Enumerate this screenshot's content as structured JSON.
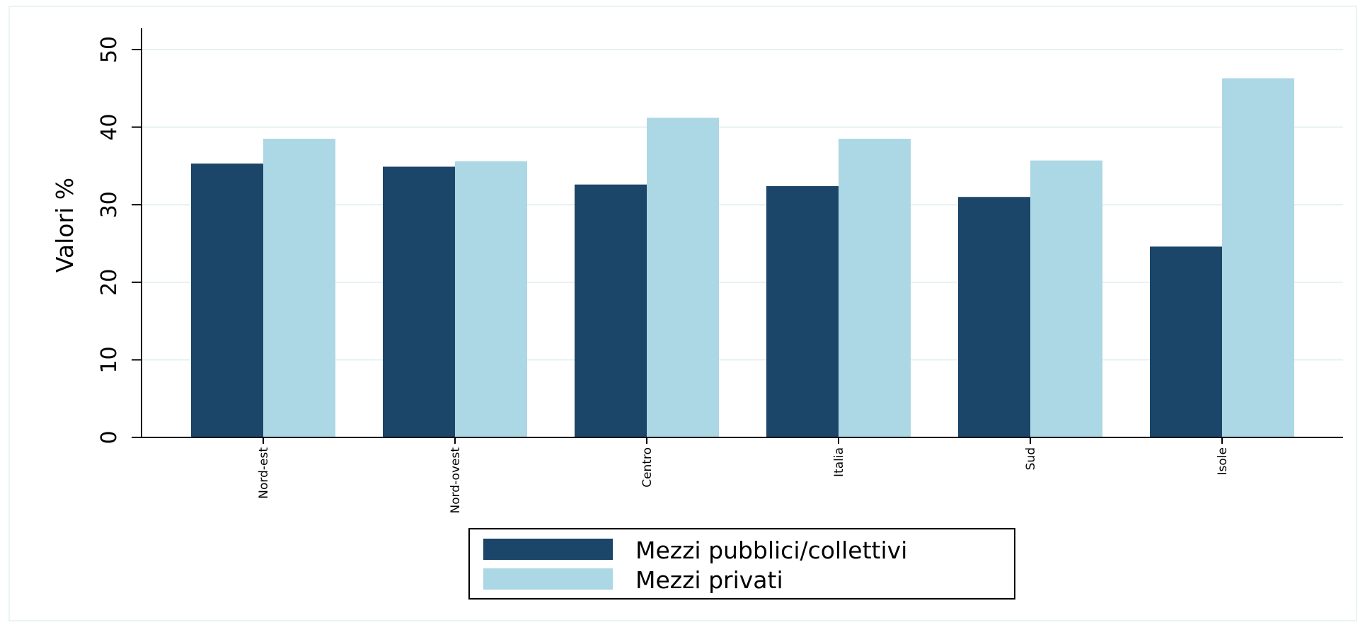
{
  "chart_data": {
    "type": "bar",
    "categories": [
      "Nord-est",
      "Nord-ovest",
      "Centro",
      "Italia",
      "Sud",
      "Isole"
    ],
    "series": [
      {
        "name": "Mezzi pubblici/collettivi",
        "color": "#1b4569",
        "values": [
          35.3,
          34.9,
          32.6,
          32.4,
          31.0,
          24.6
        ]
      },
      {
        "name": "Mezzi privati",
        "color": "#acd7e5",
        "values": [
          38.5,
          35.6,
          41.2,
          38.5,
          35.7,
          46.3
        ]
      }
    ],
    "ylabel": "Valori %",
    "xlabel": "",
    "ylim": [
      0,
      50
    ],
    "yticks": [
      0,
      10,
      20,
      30,
      40,
      50
    ],
    "grid": true,
    "gridColor": "#e6f1f1",
    "legend": "bottom"
  }
}
